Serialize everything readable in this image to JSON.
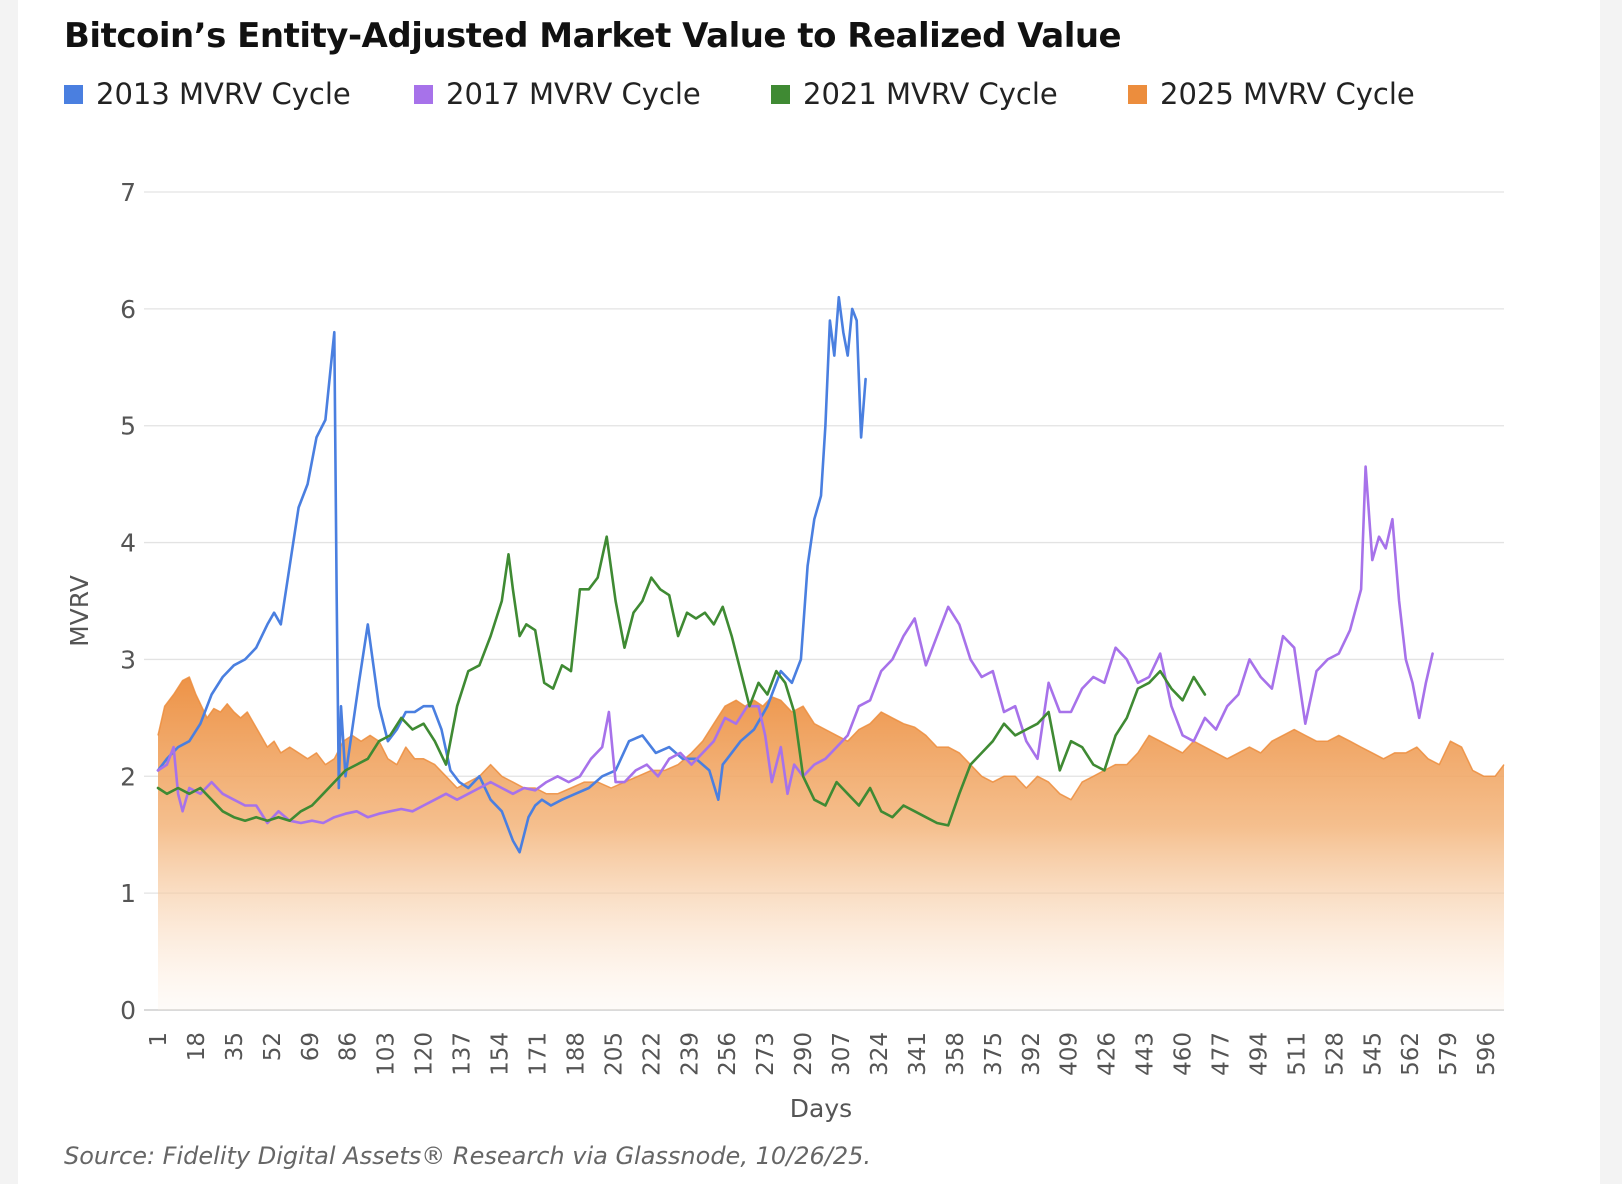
{
  "title": "Bitcoin’s Entity-Adjusted Market Value to Realized Value",
  "source": "Source: Fidelity Digital Assets® Research via Glassnode, 10/26/25.",
  "legend": [
    {
      "label": "2013 MVRV Cycle",
      "color": "#4a7fe0"
    },
    {
      "label": "2017 MVRV Cycle",
      "color": "#a772ea"
    },
    {
      "label": "2021 MVRV Cycle",
      "color": "#3f8a33"
    },
    {
      "label": "2025 MVRV Cycle",
      "color": "#ec8d3d"
    }
  ],
  "chart_data": {
    "type": "line",
    "title": "Bitcoin’s Entity-Adjusted Market Value to Realized Value",
    "xlabel": "Days",
    "ylabel": "MVRV",
    "xlim": [
      1,
      604
    ],
    "ylim": [
      0,
      7
    ],
    "yticks": [
      0,
      1,
      2,
      3,
      4,
      5,
      6,
      7
    ],
    "xticks": [
      1,
      18,
      35,
      52,
      69,
      86,
      103,
      120,
      137,
      154,
      171,
      188,
      205,
      222,
      239,
      256,
      273,
      290,
      307,
      324,
      341,
      358,
      375,
      392,
      409,
      426,
      443,
      460,
      477,
      494,
      511,
      528,
      545,
      562,
      579,
      596
    ],
    "grid": true,
    "legend_position": "top",
    "series": [
      {
        "name": "2025 MVRV Cycle",
        "style": "area",
        "color": "#ec8d3d",
        "x": [
          1,
          4,
          8,
          12,
          15,
          18,
          20,
          23,
          26,
          29,
          32,
          35,
          38,
          41,
          44,
          47,
          50,
          53,
          56,
          60,
          64,
          68,
          72,
          76,
          80,
          84,
          88,
          92,
          96,
          100,
          104,
          108,
          112,
          116,
          120,
          125,
          130,
          135,
          140,
          145,
          150,
          155,
          160,
          165,
          170,
          175,
          180,
          186,
          192,
          198,
          204,
          210,
          216,
          222,
          228,
          234,
          240,
          245,
          250,
          255,
          260,
          264,
          268,
          272,
          276,
          280,
          285,
          290,
          295,
          300,
          305,
          310,
          315,
          320,
          325,
          330,
          335,
          340,
          345,
          350,
          355,
          360,
          365,
          370,
          375,
          380,
          385,
          390,
          395,
          400,
          405,
          410,
          415,
          420,
          425,
          430,
          435,
          440,
          445,
          450,
          455,
          460,
          465,
          470,
          475,
          480,
          485,
          490,
          495,
          500,
          505,
          510,
          515,
          520,
          525,
          530,
          535,
          540,
          545,
          550,
          555,
          560,
          565,
          570,
          575,
          580,
          585,
          590,
          595,
          600,
          604
        ],
        "y": [
          2.35,
          2.6,
          2.7,
          2.82,
          2.85,
          2.7,
          2.62,
          2.5,
          2.58,
          2.55,
          2.62,
          2.55,
          2.5,
          2.55,
          2.45,
          2.35,
          2.25,
          2.3,
          2.2,
          2.25,
          2.2,
          2.15,
          2.2,
          2.1,
          2.15,
          2.3,
          2.35,
          2.3,
          2.35,
          2.3,
          2.15,
          2.1,
          2.25,
          2.15,
          2.15,
          2.1,
          2.0,
          1.9,
          1.95,
          2.0,
          2.1,
          2.0,
          1.95,
          1.9,
          1.9,
          1.85,
          1.85,
          1.9,
          1.95,
          1.95,
          1.9,
          1.95,
          2.0,
          2.05,
          2.05,
          2.1,
          2.2,
          2.3,
          2.45,
          2.6,
          2.65,
          2.6,
          2.65,
          2.6,
          2.68,
          2.65,
          2.55,
          2.6,
          2.45,
          2.4,
          2.35,
          2.3,
          2.4,
          2.45,
          2.55,
          2.5,
          2.45,
          2.42,
          2.35,
          2.25,
          2.25,
          2.2,
          2.1,
          2.0,
          1.95,
          2.0,
          2.0,
          1.9,
          2.0,
          1.95,
          1.85,
          1.8,
          1.95,
          2.0,
          2.05,
          2.1,
          2.1,
          2.2,
          2.35,
          2.3,
          2.25,
          2.2,
          2.3,
          2.25,
          2.2,
          2.15,
          2.2,
          2.25,
          2.2,
          2.3,
          2.35,
          2.4,
          2.35,
          2.3,
          2.3,
          2.35,
          2.3,
          2.25,
          2.2,
          2.15,
          2.2,
          2.2,
          2.25,
          2.15,
          2.1,
          2.3,
          2.25,
          2.05,
          2.0,
          2.0,
          2.1
        ]
      },
      {
        "name": "2013 MVRV Cycle",
        "color": "#4a7fe0",
        "x": [
          1,
          5,
          10,
          15,
          20,
          25,
          30,
          35,
          40,
          45,
          50,
          53,
          56,
          60,
          64,
          68,
          72,
          76,
          80,
          81,
          82,
          83,
          85,
          88,
          91,
          95,
          100,
          104,
          108,
          112,
          116,
          120,
          124,
          128,
          132,
          136,
          140,
          145,
          150,
          155,
          160,
          163,
          167,
          170,
          173,
          177,
          182,
          188,
          194,
          200,
          206,
          212,
          218,
          224,
          230,
          236,
          242,
          248,
          252,
          254,
          256,
          262,
          268,
          274,
          280,
          285,
          289,
          292,
          295,
          298,
          300,
          302,
          304,
          306,
          308,
          310,
          312,
          314,
          316,
          318
        ],
        "y": [
          2.05,
          2.15,
          2.25,
          2.3,
          2.45,
          2.7,
          2.85,
          2.95,
          3.0,
          3.1,
          3.3,
          3.4,
          3.3,
          3.8,
          4.3,
          4.5,
          4.9,
          5.05,
          5.8,
          3.6,
          1.9,
          2.6,
          2.0,
          2.4,
          2.8,
          3.3,
          2.6,
          2.3,
          2.4,
          2.55,
          2.55,
          2.6,
          2.6,
          2.4,
          2.05,
          1.95,
          1.9,
          2.0,
          1.8,
          1.7,
          1.45,
          1.35,
          1.65,
          1.75,
          1.8,
          1.75,
          1.8,
          1.85,
          1.9,
          2.0,
          2.05,
          2.3,
          2.35,
          2.2,
          2.25,
          2.15,
          2.15,
          2.05,
          1.8,
          2.1,
          2.15,
          2.3,
          2.4,
          2.6,
          2.9,
          2.8,
          3.0,
          3.8,
          4.2,
          4.4,
          5.0,
          5.9,
          5.6,
          6.1,
          5.8,
          5.6,
          6.0,
          5.9,
          4.9,
          5.4
        ]
      },
      {
        "name": "2017 MVRV Cycle",
        "color": "#a772ea",
        "x": [
          1,
          5,
          8,
          10,
          12,
          15,
          20,
          25,
          30,
          35,
          40,
          45,
          50,
          55,
          60,
          65,
          70,
          75,
          80,
          85,
          90,
          95,
          100,
          105,
          110,
          115,
          120,
          125,
          130,
          135,
          140,
          145,
          150,
          155,
          160,
          165,
          170,
          175,
          180,
          185,
          190,
          195,
          200,
          203,
          206,
          210,
          215,
          220,
          225,
          230,
          235,
          240,
          245,
          250,
          255,
          260,
          265,
          270,
          273,
          276,
          280,
          283,
          286,
          290,
          295,
          300,
          305,
          310,
          315,
          320,
          325,
          330,
          335,
          340,
          345,
          350,
          355,
          360,
          365,
          370,
          375,
          380,
          385,
          390,
          395,
          400,
          405,
          410,
          415,
          420,
          425,
          430,
          435,
          440,
          445,
          450,
          455,
          460,
          465,
          470,
          475,
          480,
          485,
          490,
          495,
          500,
          505,
          510,
          515,
          520,
          525,
          530,
          535,
          540,
          542,
          545,
          548,
          551,
          554,
          557,
          560,
          563,
          566,
          569,
          572
        ],
        "y": [
          2.05,
          2.1,
          2.25,
          1.85,
          1.7,
          1.9,
          1.85,
          1.95,
          1.85,
          1.8,
          1.75,
          1.75,
          1.6,
          1.7,
          1.62,
          1.6,
          1.62,
          1.6,
          1.65,
          1.68,
          1.7,
          1.65,
          1.68,
          1.7,
          1.72,
          1.7,
          1.75,
          1.8,
          1.85,
          1.8,
          1.85,
          1.9,
          1.95,
          1.9,
          1.85,
          1.9,
          1.88,
          1.95,
          2.0,
          1.95,
          2.0,
          2.15,
          2.25,
          2.55,
          1.95,
          1.95,
          2.05,
          2.1,
          2.0,
          2.15,
          2.2,
          2.1,
          2.2,
          2.3,
          2.5,
          2.45,
          2.6,
          2.6,
          2.35,
          1.95,
          2.25,
          1.85,
          2.1,
          2.0,
          2.1,
          2.15,
          2.25,
          2.35,
          2.6,
          2.65,
          2.9,
          3.0,
          3.2,
          3.35,
          2.95,
          3.2,
          3.45,
          3.3,
          3.0,
          2.85,
          2.9,
          2.55,
          2.6,
          2.3,
          2.15,
          2.8,
          2.55,
          2.55,
          2.75,
          2.85,
          2.8,
          3.1,
          3.0,
          2.8,
          2.85,
          3.05,
          2.6,
          2.35,
          2.3,
          2.5,
          2.4,
          2.6,
          2.7,
          3.0,
          2.85,
          2.75,
          3.2,
          3.1,
          2.45,
          2.9,
          3.0,
          3.05,
          3.25,
          3.6,
          4.65,
          3.85,
          4.05,
          3.95,
          4.2,
          3.5,
          3.0,
          2.8,
          2.5,
          2.8,
          3.05
        ]
      },
      {
        "name": "2021 MVRV Cycle",
        "color": "#3f8a33",
        "x": [
          1,
          5,
          10,
          15,
          20,
          25,
          30,
          35,
          40,
          45,
          50,
          55,
          60,
          65,
          70,
          75,
          80,
          85,
          90,
          95,
          100,
          105,
          110,
          115,
          120,
          125,
          130,
          135,
          140,
          145,
          150,
          155,
          158,
          160,
          163,
          166,
          170,
          174,
          178,
          182,
          186,
          190,
          194,
          198,
          202,
          206,
          210,
          214,
          218,
          222,
          226,
          230,
          234,
          238,
          242,
          246,
          250,
          254,
          258,
          262,
          266,
          270,
          274,
          278,
          282,
          286,
          290,
          295,
          300,
          305,
          310,
          315,
          320,
          325,
          330,
          335,
          340,
          345,
          350,
          355,
          360,
          365,
          370,
          375,
          380,
          385,
          390,
          395,
          400,
          405,
          410,
          415,
          420,
          425,
          430,
          435,
          440,
          445,
          450,
          455,
          460,
          465,
          470
        ],
        "y": [
          1.9,
          1.85,
          1.9,
          1.85,
          1.9,
          1.8,
          1.7,
          1.65,
          1.62,
          1.65,
          1.62,
          1.65,
          1.62,
          1.7,
          1.75,
          1.85,
          1.95,
          2.05,
          2.1,
          2.15,
          2.3,
          2.35,
          2.5,
          2.4,
          2.45,
          2.3,
          2.1,
          2.6,
          2.9,
          2.95,
          3.2,
          3.5,
          3.9,
          3.6,
          3.2,
          3.3,
          3.25,
          2.8,
          2.75,
          2.95,
          2.9,
          3.6,
          3.6,
          3.7,
          4.05,
          3.5,
          3.1,
          3.4,
          3.5,
          3.7,
          3.6,
          3.55,
          3.2,
          3.4,
          3.35,
          3.4,
          3.3,
          3.45,
          3.2,
          2.9,
          2.6,
          2.8,
          2.7,
          2.9,
          2.8,
          2.55,
          2.0,
          1.8,
          1.75,
          1.95,
          1.85,
          1.75,
          1.9,
          1.7,
          1.65,
          1.75,
          1.7,
          1.65,
          1.6,
          1.58,
          1.85,
          2.1,
          2.2,
          2.3,
          2.45,
          2.35,
          2.4,
          2.45,
          2.55,
          2.05,
          2.3,
          2.25,
          2.1,
          2.05,
          2.35,
          2.5,
          2.75,
          2.8,
          2.9,
          2.75,
          2.65,
          2.85,
          2.7
        ]
      }
    ]
  }
}
